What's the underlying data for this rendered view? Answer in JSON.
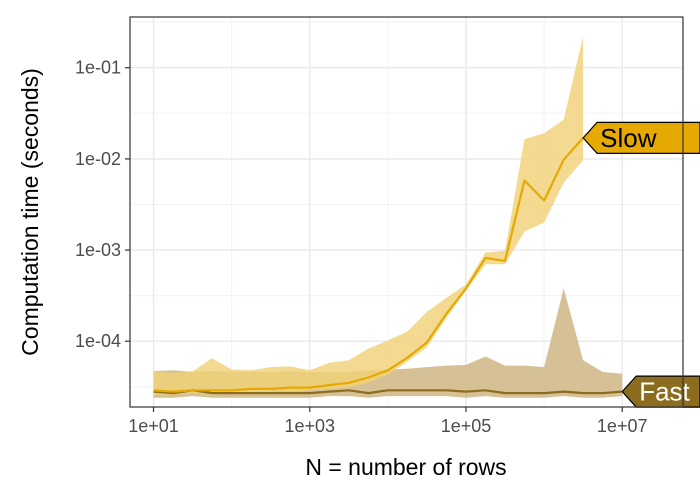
{
  "chart_data": {
    "type": "line",
    "xlabel": "N = number of rows",
    "ylabel": "Computation time (seconds)",
    "x_scale": "log10",
    "y_scale": "log10",
    "xlim": [
      5,
      60000000
    ],
    "ylim": [
      1.9e-05,
      0.36
    ],
    "x_ticks": [
      {
        "value": 10,
        "label": "1e+01"
      },
      {
        "value": 1000,
        "label": "1e+03"
      },
      {
        "value": 100000,
        "label": "1e+05"
      },
      {
        "value": 10000000,
        "label": "1e+07"
      }
    ],
    "y_ticks": [
      {
        "value": 0.0001,
        "label": "1e-04"
      },
      {
        "value": 0.001,
        "label": "1e-03"
      },
      {
        "value": 0.01,
        "label": "1e-02"
      },
      {
        "value": 0.1,
        "label": "1e-01"
      }
    ],
    "grid": true,
    "legend": "none",
    "series": [
      {
        "name": "Slow",
        "color": "#E6A902",
        "band_color": "#F0D278",
        "x": [
          10,
          18,
          32,
          56,
          100,
          178,
          316,
          562,
          1000,
          1780,
          3160,
          5620,
          10000,
          17800,
          31600,
          56200,
          100000,
          178000,
          316000,
          562000,
          1000000,
          1780000,
          3160000
        ],
        "median": [
          2.9e-05,
          2.8e-05,
          2.9e-05,
          2.9e-05,
          2.9e-05,
          3e-05,
          3e-05,
          3.1e-05,
          3.1e-05,
          3.3e-05,
          3.5e-05,
          4e-05,
          4.8e-05,
          6.6e-05,
          9.7e-05,
          0.0002,
          0.00038,
          0.00082,
          0.00076,
          0.0058,
          0.0035,
          0.0098,
          0.017
        ],
        "lower": [
          2.6e-05,
          2.6e-05,
          2.7e-05,
          2.6e-05,
          2.7e-05,
          2.7e-05,
          2.8e-05,
          2.8e-05,
          2.9e-05,
          3e-05,
          3.1e-05,
          3.5e-05,
          4.3e-05,
          6e-05,
          8.6e-05,
          0.00018,
          0.00036,
          0.0007,
          0.0007,
          0.0016,
          0.002,
          0.0055,
          0.0097
        ],
        "upper": [
          4.7e-05,
          4.5e-05,
          4.7e-05,
          6.5e-05,
          4.9e-05,
          4.8e-05,
          5.2e-05,
          5.3e-05,
          4.8e-05,
          5.8e-05,
          6.2e-05,
          8.3e-05,
          0.000102,
          0.000128,
          0.00021,
          0.0003,
          0.00042,
          0.00094,
          0.00098,
          0.0165,
          0.0191,
          0.027,
          0.22
        ]
      },
      {
        "name": "Fast",
        "color": "#8C6D1F",
        "band_color": "#D2B98A",
        "x": [
          10,
          18,
          32,
          56,
          100,
          178,
          316,
          562,
          1000,
          1780,
          3160,
          5620,
          10000,
          17800,
          31600,
          56200,
          100000,
          178000,
          316000,
          562000,
          1000000,
          1780000,
          3160000,
          5620000,
          10000000
        ],
        "median": [
          2.8e-05,
          2.7e-05,
          2.9e-05,
          2.7e-05,
          2.7e-05,
          2.7e-05,
          2.7e-05,
          2.7e-05,
          2.7e-05,
          2.8e-05,
          2.9e-05,
          2.7e-05,
          2.9e-05,
          2.9e-05,
          2.9e-05,
          2.9e-05,
          2.8e-05,
          2.9e-05,
          2.7e-05,
          2.7e-05,
          2.7e-05,
          2.8e-05,
          2.7e-05,
          2.7e-05,
          2.8e-05
        ],
        "lower": [
          2.4e-05,
          2.4e-05,
          2.5e-05,
          2.4e-05,
          2.4e-05,
          2.4e-05,
          2.4e-05,
          2.4e-05,
          2.4e-05,
          2.5e-05,
          2.5e-05,
          2.4e-05,
          2.5e-05,
          2.5e-05,
          2.5e-05,
          2.5e-05,
          2.4e-05,
          2.5e-05,
          2.4e-05,
          2.4e-05,
          2.4e-05,
          2.5e-05,
          2.4e-05,
          2.4e-05,
          2.5e-05
        ],
        "upper": [
          4.7e-05,
          4.8e-05,
          4.6e-05,
          4.7e-05,
          4.6e-05,
          4.6e-05,
          4.6e-05,
          4.7e-05,
          4.6e-05,
          4.6e-05,
          4.6e-05,
          4.8e-05,
          4.9e-05,
          5e-05,
          5.2e-05,
          5.4e-05,
          5.5e-05,
          6.8e-05,
          5.4e-05,
          5.4e-05,
          5.2e-05,
          0.00038,
          6.2e-05,
          4.6e-05,
          4.4e-05
        ]
      }
    ],
    "annotations": [
      {
        "text": "Slow",
        "series": "Slow",
        "anchor_x": 3160000,
        "anchor_y": 0.017,
        "fill": "#E6A902",
        "text_color": "#000000"
      },
      {
        "text": "Fast",
        "series": "Fast",
        "anchor_x": 10000000,
        "anchor_y": 2.8e-05,
        "fill": "#8C6D1F",
        "text_color": "#ffffff"
      }
    ]
  }
}
